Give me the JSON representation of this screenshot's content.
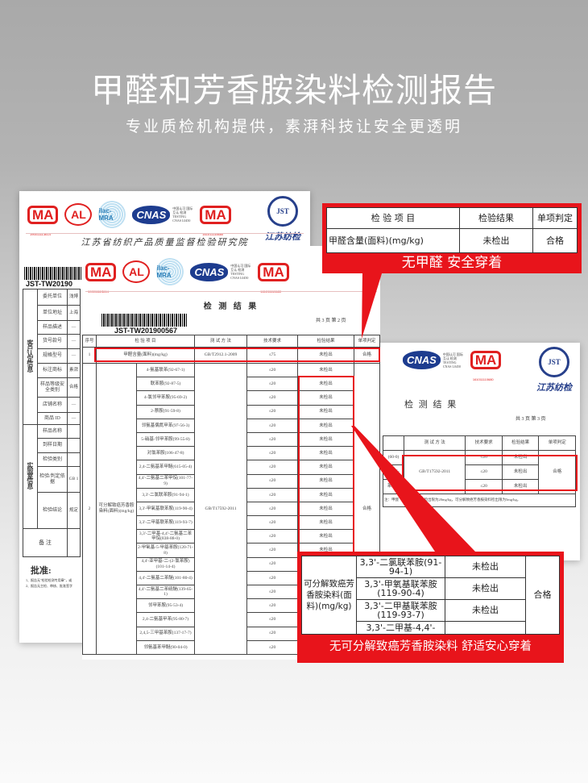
{
  "header": {
    "title": "甲醛和芳香胺染料检测报告",
    "subtitle": "专业质检机构提供，素湃科技让安全更透明"
  },
  "logos": {
    "cma": "MA",
    "cma_no1": "190011113614",
    "cal": "AL",
    "cal_no": "(2010)质监认字(xxx)号",
    "ilac": "ilac-MRA",
    "cnas": "CNAS",
    "cnas_text": "中国认可 国际互认 检测 TESTING CNAS L0450",
    "cma_no2": "161011110680",
    "jst": "JST",
    "jst_text": "江苏纺检"
  },
  "colors": {
    "accent": "#e8141b",
    "cnas": "#1d3c8f"
  },
  "back_doc": {
    "org": "江苏省纺织产品质量监督检验研究院",
    "code": "JST-TW20190",
    "group1": "客户认定信息",
    "group2": "实验室信息",
    "rows1": [
      {
        "k": "委托单位",
        "v": "浅博"
      },
      {
        "k": "单位地址",
        "v": "上海"
      },
      {
        "k": "样品描述",
        "v": "—"
      },
      {
        "k": "货号款号",
        "v": "—"
      },
      {
        "k": "规格型号",
        "v": "—"
      },
      {
        "k": "标注商标",
        "v": "素湃"
      },
      {
        "k": "样品等级安全类别",
        "v": "合格"
      },
      {
        "k": "店铺名称",
        "v": "—"
      },
      {
        "k": "商品 ID",
        "v": "—"
      }
    ],
    "rows2": [
      {
        "k": "样品名称",
        "v": ""
      },
      {
        "k": "到样日期",
        "v": ""
      },
      {
        "k": "检验类别",
        "v": ""
      },
      {
        "k": "检验/判定依据",
        "v": "GB 1"
      },
      {
        "k": "检验结论",
        "v": "规定"
      }
    ],
    "remark": "备 注",
    "approve": "批准:",
    "note1": "1、报告无\"检验检测专用章\"，或",
    "note2": "2、报告无主检、审核、批准签字"
  },
  "main_doc": {
    "title": "检 测 结 果",
    "code": "JST-TW201900567",
    "page": "共 3 页  第 2 页",
    "headers": [
      "序号",
      "检 验 项 目",
      "测 试 方 法",
      "技术要求",
      "检验结果",
      "单项判定"
    ],
    "row1": {
      "no": "1",
      "item": "甲醛含量(面料)(mg/kg)",
      "method": "GB/T2912.1-2009",
      "req": "≤75",
      "result": "未检出",
      "judge": "合格"
    },
    "row2": {
      "no": "2",
      "category": "可分解致癌芳香胺染料(面料)(mg/kg)",
      "method": "GB/T17592-2011",
      "judge": "合格",
      "req": "≤20",
      "result": "未检出",
      "items": [
        "4-氨基联苯(92-67-1)",
        "联苯胺(92-87-5)",
        "4-氯邻甲苯胺(95-69-2)",
        "2-萘胺(91-59-8)",
        "邻氨基偶氮甲苯(97-56-3)",
        "5-硝基-邻甲苯胺(99-55-8)",
        "对氯苯胺(106-47-8)",
        "2,4-二氨基苯甲醚(615-05-4)",
        "4,4'-二氨基二苯甲烷(101-77-9)",
        "3,3'-二氯联苯胺(91-94-1)",
        "3,3'-甲氧基联苯胺(119-90-4)",
        "3,3'-二甲基联苯胺(119-93-7)",
        "3,3'-二甲基-4,4'-二氨基二苯甲烷(838-88-0)",
        "2-甲氧基-5-甲基苯胺(120-71-8)",
        "4,4'-亚甲基-二-(2-氯苯胺)(101-14-4)",
        "4,4'-二氨基二苯醚(101-80-4)",
        "4,4'-二氨基二苯硫醚(139-65-1)",
        "邻甲苯胺(95-53-4)",
        "2,4-二氨基甲苯(95-80-7)",
        "2,4,5-三甲基苯胺(137-17-7)",
        "邻氨基苯甲醚(90-04-0)"
      ]
    }
  },
  "right_doc": {
    "title": "检 测 结 果",
    "page": "共 3 页  第 3 页",
    "headers": [
      "测 试 方 法",
      "技术要求",
      "检验结果",
      "单项判定"
    ],
    "method": "GB/T17592-2011",
    "req": "≤20",
    "result": "未检出",
    "judge": "合格",
    "note": "注：甲醛（分光光度法）检出限为20mg/kg，可分解致癌芳香胺染料检出限为5mg/kg。",
    "left_frag": [
      "(60-0)",
      "胺(95-",
      "苯胺(9"
    ]
  },
  "callout1": {
    "h1": "检 验 项 目",
    "h2": "检验结果",
    "h3": "单项判定",
    "item": "甲醛含量(面料)(mg/kg)",
    "result": "未检出",
    "judge": "合格",
    "banner": "无甲醛 安全穿着"
  },
  "callout2": {
    "category": "可分解致癌芳香胺染料(面料)(mg/kg)",
    "rows": [
      {
        "item": "3,3'-二氯联苯胺(91-94-1)",
        "result": "未检出"
      },
      {
        "item": "3,3'-甲氧基联苯胺(119-90-4)",
        "result": "未检出"
      },
      {
        "item": "3,3'-二甲基联苯胺(119-93-7)",
        "result": "未检出"
      },
      {
        "item": "3,3'-二甲基-4,4'-",
        "result": ""
      }
    ],
    "judge": "合格",
    "banner": "无可分解致癌芳香胺染料 舒适安心穿着"
  }
}
